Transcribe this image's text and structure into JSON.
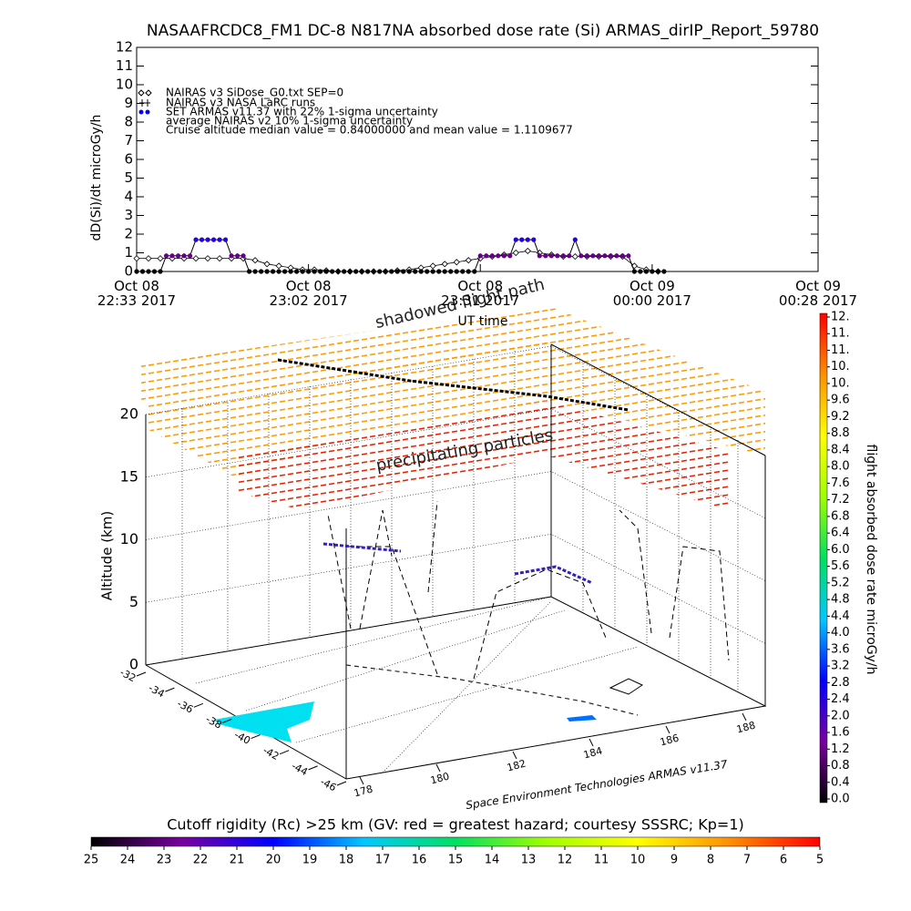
{
  "title": "NASAAFRCDC8_FM1 DC-8   N817NA absorbed dose rate (Si) ARMAS_dirIP_Report_59780",
  "chart_data": [
    {
      "type": "line",
      "y_label": "dD(Si)/dt microGy/h",
      "x_label": "UT time",
      "legend_notes": [
        "NAIRAS v3 NASA LaRC runs",
        "average NAIRAS v2 10% 1-sigma uncertainty",
        "Cruise altitude median value = 0.84000000 and mean value = 1.1109677"
      ],
      "xlim": [
        0,
        115
      ],
      "xticks": [
        {
          "value": 0,
          "label": "Oct 08\n22:33 2017"
        },
        {
          "value": 29,
          "label": "Oct 08\n23:02 2017"
        },
        {
          "value": 58,
          "label": "Oct 08\n23:31 2017"
        },
        {
          "value": 87,
          "label": "Oct 09\n00:00 2017"
        },
        {
          "value": 115,
          "label": "Oct 09\n00:28 2017"
        }
      ],
      "ylim": [
        0,
        12
      ],
      "yticks": [
        0,
        1,
        2,
        3,
        4,
        5,
        6,
        7,
        8,
        9,
        10,
        11,
        12
      ],
      "series": [
        {
          "name": "NAIRAS v3 SiDose_G0.txt SEP=0",
          "color": "#000000",
          "x": [
            0,
            2,
            4,
            6,
            8,
            10,
            12,
            14,
            16,
            18,
            20,
            22,
            24,
            26,
            28,
            30,
            32,
            34,
            36,
            38,
            40,
            42,
            44,
            46,
            48,
            50,
            52,
            54,
            56,
            58,
            60,
            62,
            64,
            66,
            68,
            70,
            72,
            74,
            76,
            78,
            80,
            82,
            84,
            86,
            88
          ],
          "values": [
            0.7,
            0.7,
            0.7,
            0.7,
            0.7,
            0.7,
            0.7,
            0.7,
            0.7,
            0.7,
            0.6,
            0.4,
            0.3,
            0.2,
            0.1,
            0.1,
            0.05,
            0,
            0,
            0,
            0,
            0,
            0.05,
            0.1,
            0.2,
            0.3,
            0.4,
            0.5,
            0.6,
            0.7,
            0.8,
            0.9,
            1.0,
            1.1,
            1.0,
            0.9,
            0.8,
            0.8,
            0.8,
            0.8,
            0.8,
            0.8,
            0.3,
            0.1,
            0
          ]
        },
        {
          "name": "SET ARMAS v11.37 with 22% 1-sigma uncertainty",
          "color": "#0000ff",
          "x": [
            0,
            1,
            2,
            3,
            4,
            5,
            6,
            7,
            8,
            9,
            10,
            11,
            12,
            13,
            14,
            15,
            16,
            17,
            18,
            19,
            20,
            21,
            22,
            23,
            24,
            25,
            26,
            27,
            28,
            29,
            30,
            31,
            32,
            33,
            34,
            35,
            36,
            37,
            38,
            39,
            40,
            41,
            42,
            43,
            44,
            45,
            46,
            47,
            48,
            49,
            50,
            51,
            52,
            53,
            54,
            55,
            56,
            57,
            58,
            59,
            60,
            61,
            62,
            63,
            64,
            65,
            66,
            67,
            68,
            69,
            70,
            71,
            72,
            73,
            74,
            75,
            76,
            77,
            78,
            79,
            80,
            81,
            82,
            83,
            84,
            85,
            86,
            87,
            88,
            89
          ],
          "values": [
            0,
            0,
            0,
            0,
            0,
            0.84,
            0.84,
            0.84,
            0.84,
            0.84,
            1.7,
            1.7,
            1.7,
            1.7,
            1.7,
            1.7,
            0.84,
            0.84,
            0.84,
            0,
            0,
            0,
            0,
            0,
            0,
            0,
            0,
            0,
            0,
            0,
            0,
            0,
            0,
            0,
            0,
            0,
            0,
            0,
            0,
            0,
            0,
            0,
            0,
            0,
            0,
            0,
            0,
            0,
            0,
            0,
            0,
            0,
            0,
            0,
            0,
            0,
            0,
            0,
            0.84,
            0.84,
            0.84,
            0.84,
            0.84,
            0.84,
            1.7,
            1.7,
            1.7,
            1.7,
            0.84,
            0.84,
            0.84,
            0.84,
            0.84,
            0.84,
            1.7,
            0.84,
            0.84,
            0.84,
            0.84,
            0.84,
            0.84,
            0.84,
            0.84,
            0.84,
            0,
            0,
            0,
            0,
            0,
            0
          ]
        }
      ]
    },
    {
      "type": "perspective",
      "annotations": [
        "shadowed flight path",
        "precipitating particles"
      ],
      "z_label": "Altitude (km)",
      "zlim": [
        0,
        20
      ],
      "zticks": [
        0,
        5,
        10,
        15,
        20
      ],
      "lat_ticks": [
        -32,
        -34,
        -36,
        -38,
        -40,
        -42,
        -44,
        -46
      ],
      "lon_ticks": [
        178,
        180,
        182,
        184,
        186,
        188
      ],
      "credit": "Space Environment Technologies ARMAS v11.37"
    },
    {
      "type": "colorbar",
      "label": "flight absorbed dose rate microGy/h",
      "ylim": [
        0,
        11.6
      ],
      "colors": [
        "#000000",
        "#7a00a0",
        "#0000ff",
        "#00c8ff",
        "#00e060",
        "#a0ff00",
        "#ffff00",
        "#ff9000",
        "#ff0000"
      ],
      "yticks": [
        {
          "value": 0,
          "label": "0.0"
        },
        0.4,
        0.8,
        1.2,
        1.6,
        {
          "value": 2,
          "label": "2.0"
        },
        2.4,
        2.8,
        3.2,
        3.6,
        {
          "value": 4,
          "label": "4.0"
        },
        4.4,
        4.8,
        5.2,
        5.6,
        {
          "value": 6,
          "label": "6.0"
        },
        6.4,
        6.8,
        7.2,
        7.6,
        {
          "value": 8,
          "label": "8.0"
        },
        8.4,
        8.8,
        9.2,
        9.6,
        {
          "value": 10,
          "label": "10."
        },
        {
          "value": 10.4,
          "label": "10."
        },
        {
          "value": 10.8,
          "label": "11."
        },
        {
          "value": 11.2,
          "label": "11."
        },
        {
          "value": 11.6,
          "label": "12."
        }
      ]
    },
    {
      "type": "colorbar_h",
      "title": "Cutoff rigidity (Rc) >25 km (GV: red = greatest hazard; courtesy SSSRC; Kp=1)",
      "xlim": [
        25,
        5
      ],
      "xticks": [
        25,
        24,
        23,
        22,
        21,
        20,
        19,
        18,
        17,
        16,
        15,
        14,
        13,
        12,
        11,
        10,
        9,
        8,
        7,
        6,
        5
      ]
    }
  ]
}
